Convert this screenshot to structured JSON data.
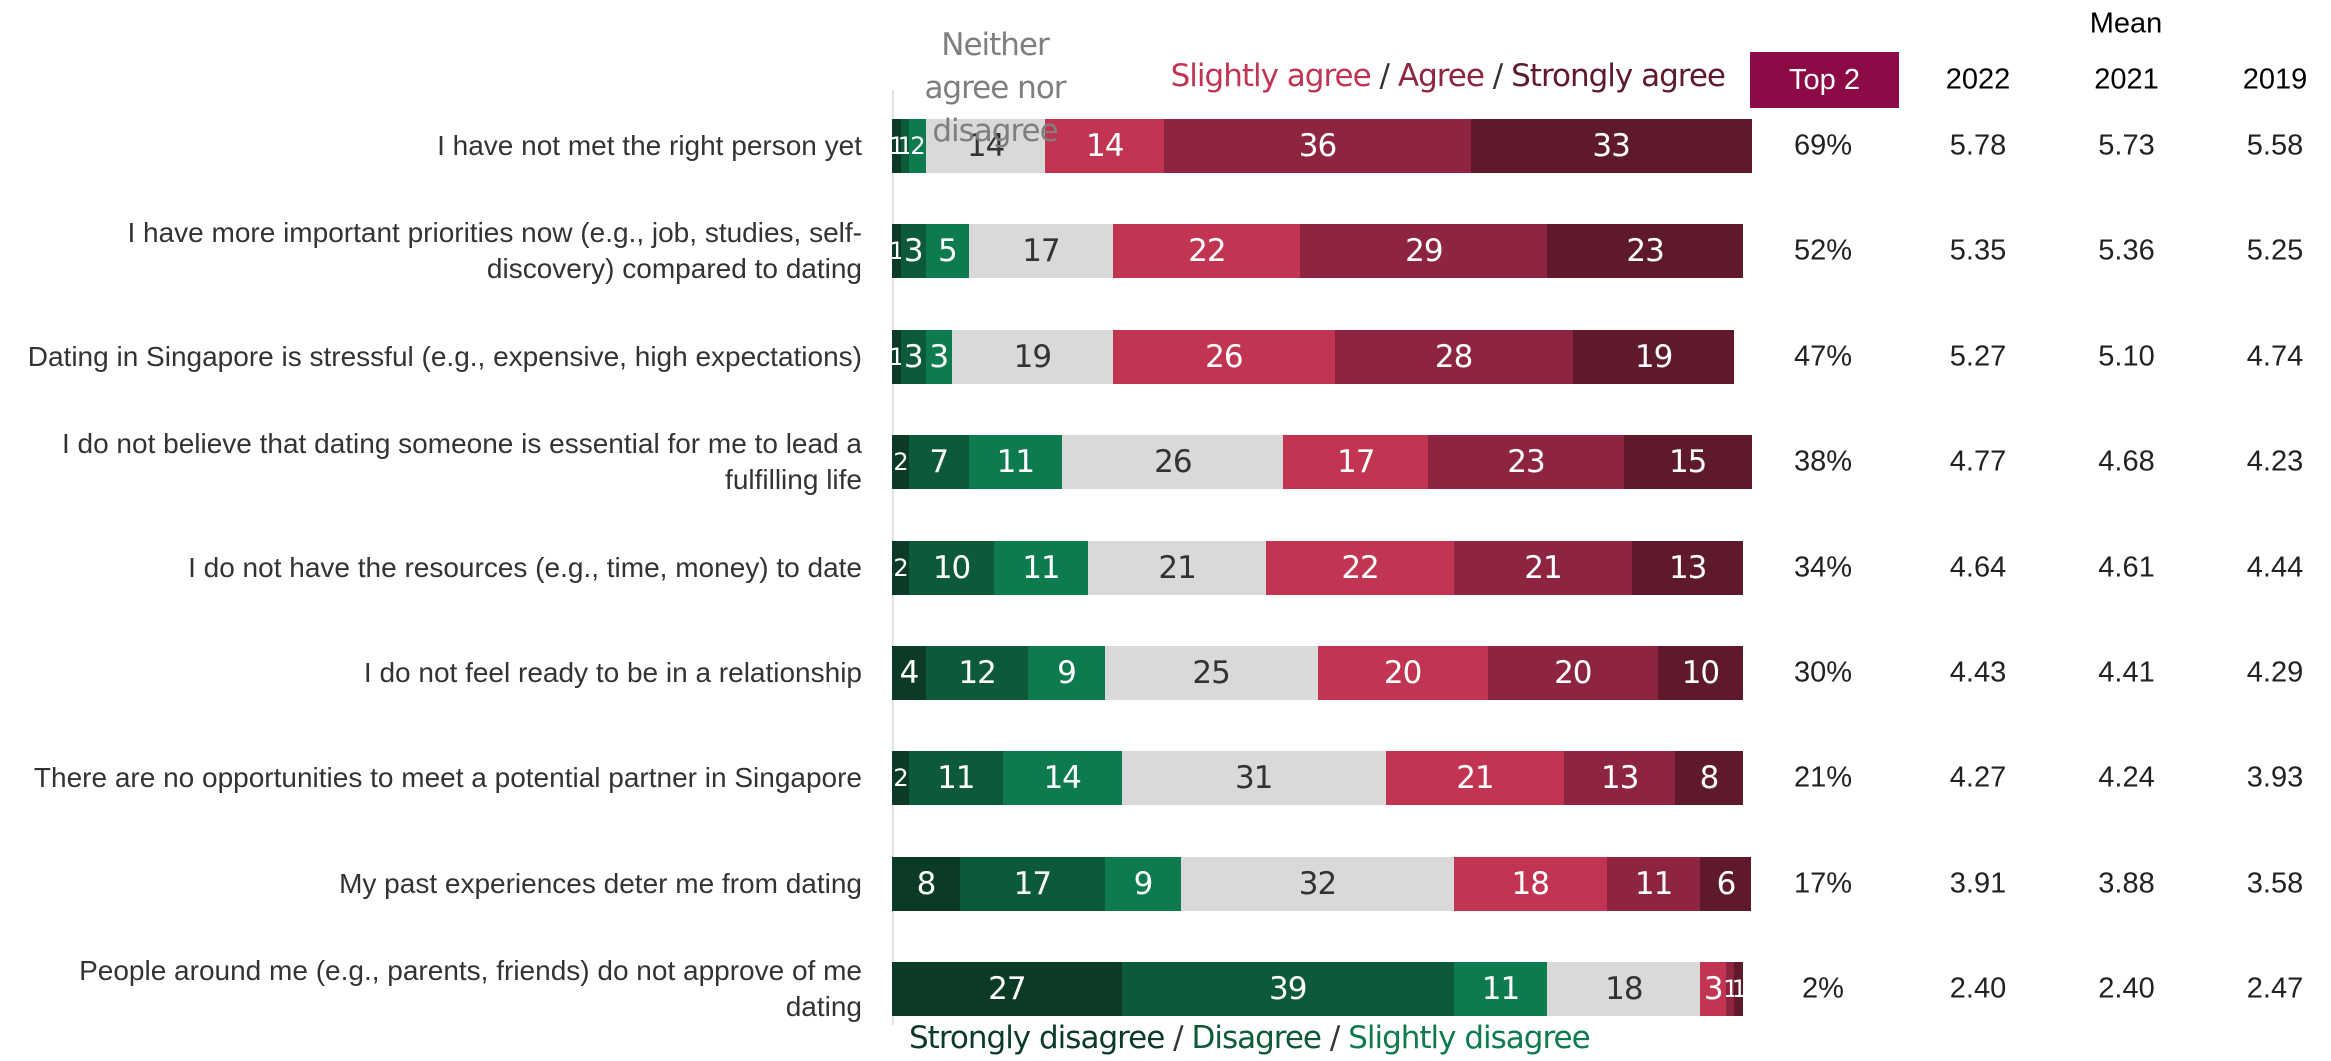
{
  "chart_data": {
    "type": "stacked-bar",
    "categories": [
      "I have not met the right person yet",
      "I have more important priorities now (e.g., job, studies, self-discovery) compared to dating",
      "Dating in Singapore is stressful (e.g., expensive, high expectations)",
      "I do not believe that dating someone is essential for me to lead a fulfilling life",
      "I do not have the resources (e.g., time, money) to date",
      "I do not feel ready to be in a relationship",
      "There are no opportunities to meet a potential partner in Singapore",
      "My past experiences deter me from dating",
      "People around me (e.g., parents, friends) do not approve of me dating"
    ],
    "series": [
      {
        "name": "Strongly disagree",
        "color": "#0b3b27",
        "label_color": "#ffffff",
        "values": [
          1,
          1,
          1,
          2,
          2,
          4,
          2,
          8,
          27
        ]
      },
      {
        "name": "Disagree",
        "color": "#0c5a39",
        "label_color": "#ffffff",
        "values": [
          1,
          3,
          3,
          7,
          10,
          12,
          11,
          17,
          39
        ]
      },
      {
        "name": "Slightly disagree",
        "color": "#0e7b4f",
        "label_color": "#ffffff",
        "values": [
          2,
          5,
          3,
          11,
          11,
          9,
          14,
          9,
          11
        ]
      },
      {
        "name": "Neither agree nor disagree",
        "color": "#d9d9d9",
        "label_color": "#333333",
        "values": [
          14,
          17,
          19,
          26,
          21,
          25,
          31,
          32,
          18
        ]
      },
      {
        "name": "Slightly agree",
        "color": "#c13452",
        "label_color": "#ffffff",
        "values": [
          14,
          22,
          26,
          17,
          22,
          20,
          21,
          18,
          3
        ]
      },
      {
        "name": "Agree",
        "color": "#8e2540",
        "label_color": "#ffffff",
        "values": [
          36,
          29,
          28,
          23,
          21,
          20,
          13,
          11,
          1
        ]
      },
      {
        "name": "Strongly agree",
        "color": "#5e1a2c",
        "label_color": "#ffffff",
        "values": [
          33,
          23,
          19,
          15,
          13,
          10,
          8,
          6,
          1
        ]
      }
    ],
    "legend_separator": "/",
    "top2": {
      "label": "Top 2",
      "values": [
        69,
        52,
        47,
        38,
        34,
        30,
        21,
        17,
        2
      ],
      "value_labels": [
        "69%",
        "52%",
        "47%",
        "38%",
        "34%",
        "30%",
        "21%",
        "17%",
        "2%"
      ]
    },
    "mean": {
      "label": "Mean",
      "columns": [
        {
          "name": "2022",
          "values": [
            5.78,
            5.35,
            5.27,
            4.77,
            4.64,
            4.43,
            4.27,
            3.91,
            2.4
          ],
          "value_labels": [
            "5.78",
            "5.35",
            "5.27",
            "4.77",
            "4.64",
            "4.43",
            "4.27",
            "3.91",
            "2.40"
          ]
        },
        {
          "name": "2021",
          "values": [
            5.73,
            5.36,
            5.1,
            4.68,
            4.61,
            4.41,
            4.24,
            3.88,
            2.4
          ],
          "value_labels": [
            "5.73",
            "5.36",
            "5.10",
            "4.68",
            "4.61",
            "4.41",
            "4.24",
            "3.88",
            "2.40"
          ]
        },
        {
          "name": "2019",
          "values": [
            5.58,
            5.25,
            4.74,
            4.23,
            4.44,
            4.29,
            3.93,
            3.58,
            2.47
          ],
          "value_labels": [
            "5.58",
            "5.25",
            "4.74",
            "4.23",
            "4.44",
            "4.29",
            "3.93",
            "3.58",
            "2.47"
          ]
        }
      ]
    }
  }
}
